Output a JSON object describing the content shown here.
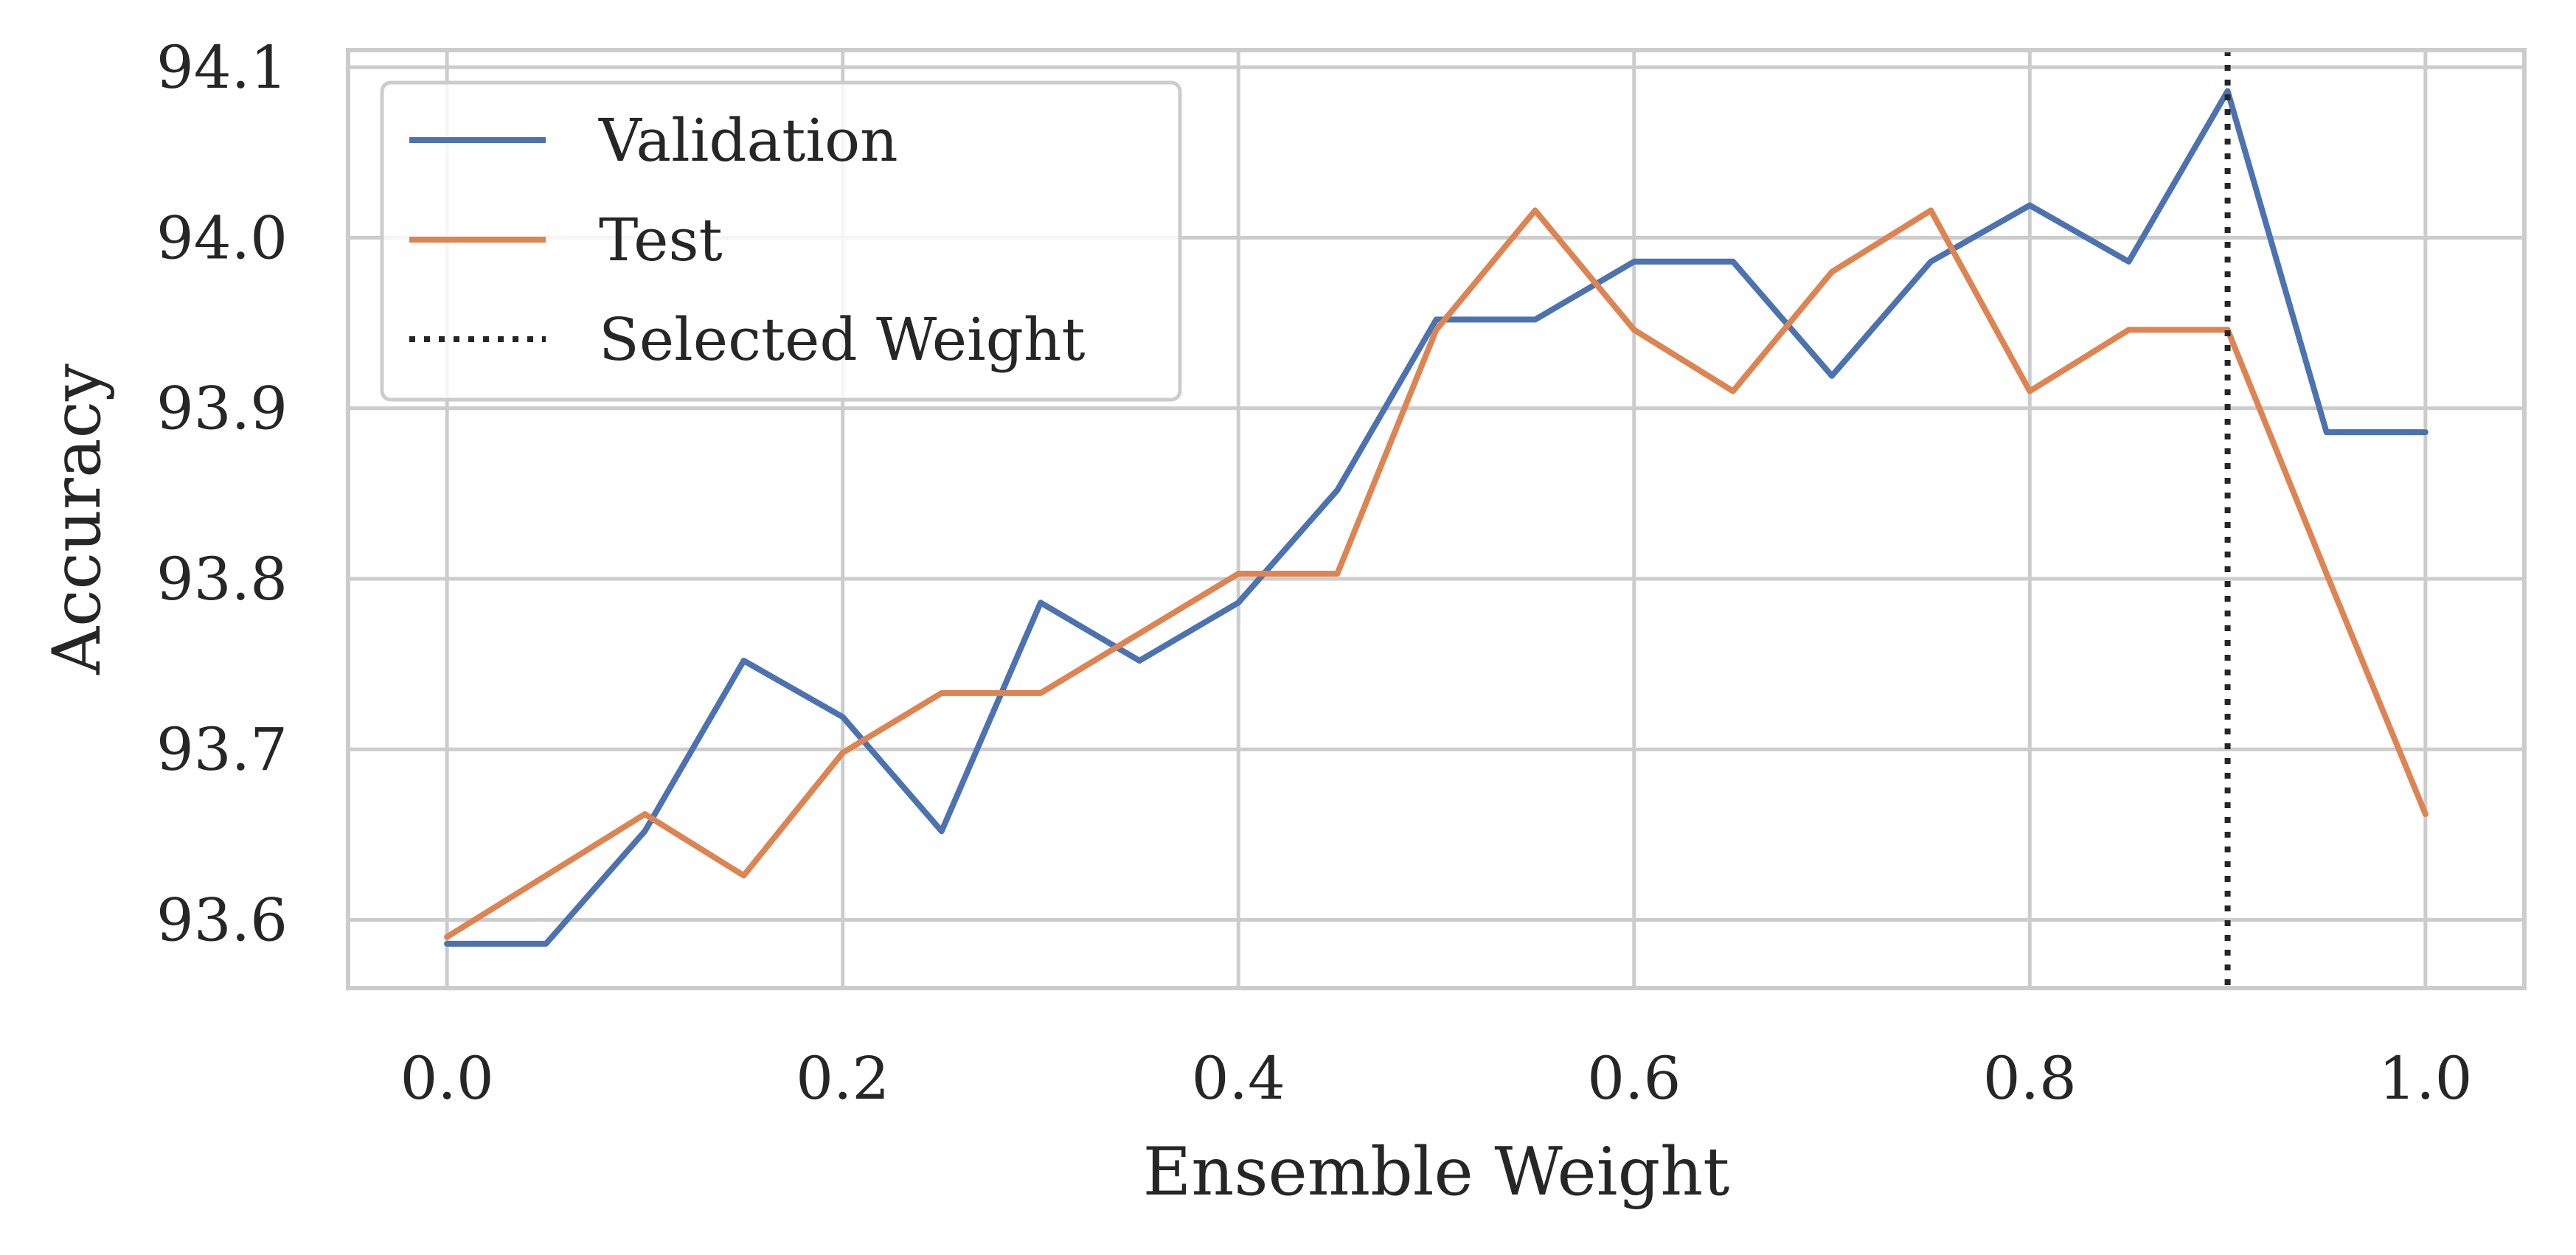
{
  "chart_data": {
    "type": "line",
    "title": "",
    "xlabel": "Ensemble Weight",
    "ylabel": "Accuracy",
    "xlim": [
      -0.05,
      1.05
    ],
    "ylim": [
      93.56,
      94.11
    ],
    "x_ticks": [
      0.0,
      0.2,
      0.4,
      0.6,
      0.8,
      1.0
    ],
    "x_tick_labels": [
      "0.0",
      "0.2",
      "0.4",
      "0.6",
      "0.8",
      "1.0"
    ],
    "y_ticks": [
      93.6,
      93.7,
      93.8,
      93.9,
      94.0,
      94.1
    ],
    "y_tick_labels": [
      "93.6",
      "93.7",
      "93.8",
      "93.9",
      "94.0",
      "94.1"
    ],
    "grid": true,
    "legend_position": "top-left",
    "x": [
      0.0,
      0.05,
      0.1,
      0.15,
      0.2,
      0.25,
      0.3,
      0.35,
      0.4,
      0.45,
      0.5,
      0.55,
      0.6,
      0.65,
      0.7,
      0.75,
      0.8,
      0.85,
      0.9,
      0.95,
      1.0
    ],
    "series": [
      {
        "name": "Validation",
        "color": "#4c72b0",
        "values": [
          93.586,
          93.586,
          93.652,
          93.752,
          93.719,
          93.652,
          93.786,
          93.752,
          93.786,
          93.852,
          93.952,
          93.952,
          93.986,
          93.986,
          93.919,
          93.986,
          94.019,
          93.986,
          94.086,
          93.886,
          93.886
        ]
      },
      {
        "name": "Test",
        "color": "#dd8452",
        "values": [
          93.59,
          93.626,
          93.662,
          93.626,
          93.698,
          93.733,
          93.733,
          93.768,
          93.803,
          93.803,
          93.946,
          94.016,
          93.946,
          93.91,
          93.98,
          94.016,
          93.91,
          93.946,
          93.946,
          93.803,
          93.662
        ]
      }
    ],
    "vline": {
      "name": "Selected Weight",
      "x": 0.9,
      "color": "#262626",
      "style": "dotted"
    },
    "colors": {
      "grid": "#cccccc",
      "spine": "#cccccc",
      "text": "#262626",
      "legend_border": "#cccccc",
      "background": "#ffffff"
    }
  }
}
